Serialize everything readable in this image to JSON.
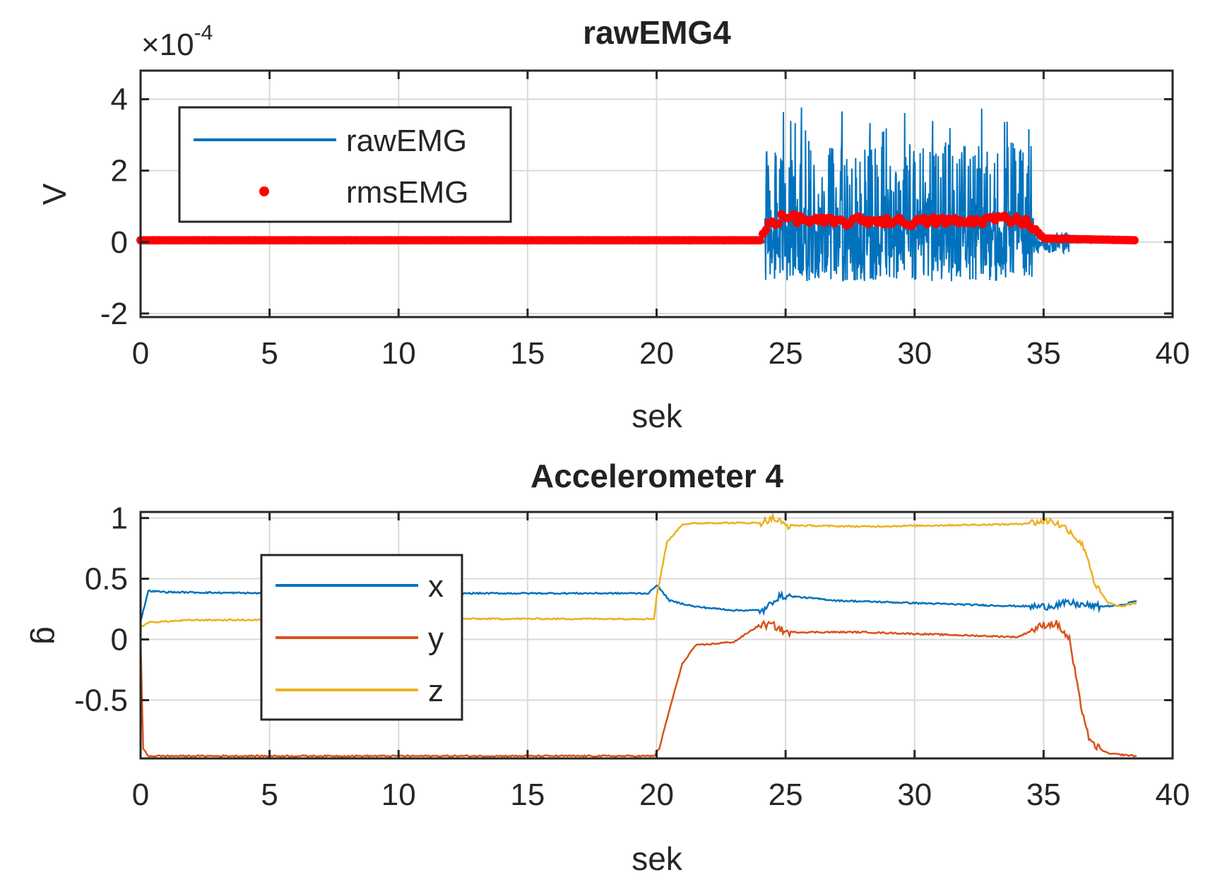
{
  "chart_data": [
    {
      "type": "line",
      "title": "rawEMG4",
      "xlabel": "sek",
      "ylabel": "V",
      "y_exponent_label": "×10",
      "y_exponent_power": "-4",
      "xlim": [
        0,
        40
      ],
      "ylim": [
        -2.1,
        4.8
      ],
      "xticks": [
        0,
        5,
        10,
        15,
        20,
        25,
        30,
        35,
        40
      ],
      "xtick_labels": [
        "0",
        "5",
        "10",
        "15",
        "20",
        "25",
        "30",
        "35",
        "40"
      ],
      "yticks": [
        -2,
        0,
        2,
        4
      ],
      "ytick_labels": [
        "-2",
        "0",
        "2",
        "4"
      ],
      "grid": true,
      "legend_position": "top-left",
      "series": [
        {
          "name": "rawEMG",
          "style": "line",
          "color": "#0072BD",
          "segments": [
            {
              "x": [
                0,
                24.2
              ],
              "baseline": 0,
              "amplitude": 0.02
            },
            {
              "x": [
                24.2,
                34.6
              ],
              "baseline": 0.3,
              "amplitude_pos": 2.5,
              "amplitude_neg": -1.4,
              "peak": 3.6
            },
            {
              "x": [
                34.6,
                36.0
              ],
              "baseline": 0,
              "amplitude": 0.3
            },
            {
              "x": [
                36.0,
                38.6
              ],
              "baseline": 0,
              "amplitude": 0.02
            }
          ]
        },
        {
          "name": "rmsEMG",
          "style": "markers",
          "color": "#FF0000",
          "x": [
            0,
            24.0,
            24.3,
            25,
            26,
            27,
            28,
            29,
            30,
            31,
            32,
            33,
            34,
            34.5,
            35.0,
            38.6
          ],
          "y": [
            0.05,
            0.05,
            0.5,
            0.7,
            0.6,
            0.55,
            0.6,
            0.6,
            0.55,
            0.6,
            0.55,
            0.65,
            0.65,
            0.5,
            0.1,
            0.05
          ]
        }
      ]
    },
    {
      "type": "line",
      "title": "Accelerometer 4",
      "xlabel": "sek",
      "ylabel": "g",
      "xlim": [
        0,
        40
      ],
      "ylim": [
        -0.98,
        1.05
      ],
      "xticks": [
        0,
        5,
        10,
        15,
        20,
        25,
        30,
        35,
        40
      ],
      "xtick_labels": [
        "0",
        "5",
        "10",
        "15",
        "20",
        "25",
        "30",
        "35",
        "40"
      ],
      "yticks": [
        -0.5,
        0,
        0.5,
        1
      ],
      "ytick_labels": [
        "-0.5",
        "0",
        "0.5",
        "1"
      ],
      "grid": true,
      "legend_position": "center-left",
      "series": [
        {
          "name": "x",
          "color": "#0072BD",
          "x": [
            0,
            0.3,
            1,
            5,
            10,
            15,
            19.7,
            20.0,
            20.5,
            21.5,
            23,
            24.2,
            24.6,
            25,
            27,
            30,
            33,
            35,
            36,
            37,
            38,
            38.6
          ],
          "y": [
            0.15,
            0.4,
            0.39,
            0.38,
            0.38,
            0.38,
            0.38,
            0.45,
            0.32,
            0.27,
            0.24,
            0.24,
            0.34,
            0.36,
            0.32,
            0.3,
            0.28,
            0.27,
            0.3,
            0.27,
            0.28,
            0.32
          ]
        },
        {
          "name": "y",
          "color": "#D95319",
          "x": [
            0,
            0.1,
            0.3,
            5,
            10,
            15,
            19.9,
            20.1,
            20.6,
            21.0,
            21.5,
            22,
            23,
            24.0,
            24.5,
            25,
            28,
            31,
            34,
            35.0,
            35.5,
            36.0,
            36.4,
            36.8,
            37.5,
            38.6
          ],
          "y": [
            0.0,
            -0.9,
            -0.96,
            -0.96,
            -0.96,
            -0.96,
            -0.96,
            -0.9,
            -0.5,
            -0.2,
            -0.05,
            -0.04,
            -0.02,
            0.12,
            0.12,
            0.06,
            0.06,
            0.04,
            0.02,
            0.12,
            0.13,
            0.0,
            -0.5,
            -0.85,
            -0.94,
            -0.96
          ]
        },
        {
          "name": "z",
          "color": "#EDB120",
          "x": [
            0,
            0.3,
            2,
            5,
            10,
            15,
            19.9,
            20.0,
            20.4,
            21.0,
            22,
            24.0,
            24.5,
            25,
            28,
            31,
            34,
            35.3,
            36,
            36.6,
            37.0,
            37.5,
            38.0,
            38.6
          ],
          "y": [
            0.1,
            0.14,
            0.16,
            0.16,
            0.17,
            0.17,
            0.17,
            0.35,
            0.8,
            0.95,
            0.96,
            0.96,
            1.0,
            0.94,
            0.93,
            0.94,
            0.95,
            0.98,
            0.9,
            0.75,
            0.45,
            0.3,
            0.27,
            0.3
          ]
        }
      ]
    }
  ]
}
